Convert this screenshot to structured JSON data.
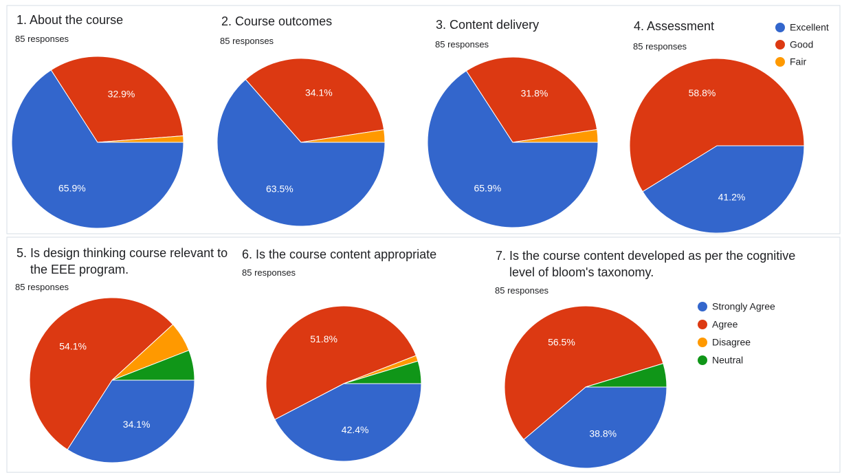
{
  "chart_data": [
    {
      "type": "pie",
      "title": "1. About the course",
      "subtitle": "85 responses",
      "values": [
        65.9,
        32.9,
        1.2
      ],
      "value_labels": [
        "65.9%",
        "32.9%",
        null
      ],
      "colors": [
        "#3366cc",
        "#dc3912",
        "#ff9900"
      ]
    },
    {
      "type": "pie",
      "title": "2. Course outcomes",
      "subtitle": "85 responses",
      "values": [
        63.5,
        34.1,
        2.4
      ],
      "value_labels": [
        "63.5%",
        "34.1%",
        null
      ],
      "colors": [
        "#3366cc",
        "#dc3912",
        "#ff9900"
      ]
    },
    {
      "type": "pie",
      "title": "3. Content delivery",
      "subtitle": "85 responses",
      "values": [
        65.9,
        31.8,
        2.4
      ],
      "value_labels": [
        "65.9%",
        "31.8%",
        null
      ],
      "colors": [
        "#3366cc",
        "#dc3912",
        "#ff9900"
      ]
    },
    {
      "type": "pie",
      "title": "4. Assessment",
      "subtitle": "85 responses",
      "categories": [
        "Excellent",
        "Good",
        "Fair"
      ],
      "values": [
        41.2,
        58.8,
        0
      ],
      "value_labels": [
        "41.2%",
        "58.8%",
        null
      ],
      "colors": [
        "#3366cc",
        "#dc3912",
        "#ff9900"
      ],
      "legend": "right"
    },
    {
      "type": "pie",
      "title": "5. Is design thinking course relevant to the EEE program.",
      "subtitle": "85 responses",
      "values": [
        34.1,
        54.1,
        5.9,
        5.9
      ],
      "value_labels": [
        "34.1%",
        "54.1%",
        null,
        null
      ],
      "colors": [
        "#3366cc",
        "#dc3912",
        "#ff9900",
        "#109618"
      ]
    },
    {
      "type": "pie",
      "title": "6. Is the course content appropriate",
      "subtitle": "85 responses",
      "values": [
        42.4,
        51.8,
        1.2,
        4.7
      ],
      "value_labels": [
        "42.4%",
        "51.8%",
        null,
        null
      ],
      "colors": [
        "#3366cc",
        "#dc3912",
        "#ff9900",
        "#109618"
      ]
    },
    {
      "type": "pie",
      "title": "7. Is the course content developed as per the cognitive level of bloom's taxonomy.",
      "subtitle": "85 responses",
      "categories": [
        "Strongly Agree",
        "Agree",
        "Disagree",
        "Neutral"
      ],
      "values": [
        38.8,
        56.5,
        0,
        4.7
      ],
      "value_labels": [
        "38.8%",
        "56.5%",
        null,
        null
      ],
      "colors": [
        "#3366cc",
        "#dc3912",
        "#ff9900",
        "#109618"
      ],
      "legend": "right"
    }
  ]
}
